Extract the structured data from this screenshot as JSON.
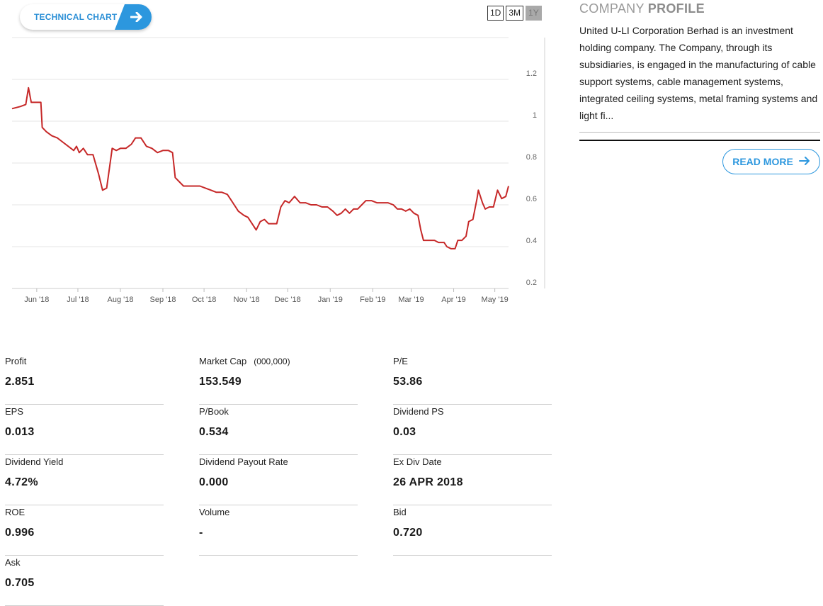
{
  "technical_chart": {
    "label": "TECHNICAL CHART"
  },
  "range_buttons": [
    {
      "label": "1D",
      "active": false
    },
    {
      "label": "3M",
      "active": false
    },
    {
      "label": "1Y",
      "active": true
    }
  ],
  "chart_data": {
    "type": "line",
    "series": [
      {
        "color": "#c62828",
        "points": [
          [
            "2018-05-14",
            1.06
          ],
          [
            "2018-05-20",
            1.07
          ],
          [
            "2018-05-24",
            1.08
          ],
          [
            "2018-05-26",
            1.16
          ],
          [
            "2018-05-28",
            1.09
          ],
          [
            "2018-06-04",
            1.09
          ],
          [
            "2018-06-05",
            0.97
          ],
          [
            "2018-06-08",
            0.95
          ],
          [
            "2018-06-12",
            0.93
          ],
          [
            "2018-06-16",
            0.92
          ],
          [
            "2018-06-20",
            0.9
          ],
          [
            "2018-06-24",
            0.88
          ],
          [
            "2018-06-28",
            0.86
          ],
          [
            "2018-06-30",
            0.88
          ],
          [
            "2018-07-02",
            0.85
          ],
          [
            "2018-07-05",
            0.87
          ],
          [
            "2018-07-08",
            0.84
          ],
          [
            "2018-07-12",
            0.84
          ],
          [
            "2018-07-16",
            0.75
          ],
          [
            "2018-07-19",
            0.67
          ],
          [
            "2018-07-22",
            0.68
          ],
          [
            "2018-07-26",
            0.87
          ],
          [
            "2018-07-29",
            0.86
          ],
          [
            "2018-08-01",
            0.87
          ],
          [
            "2018-08-05",
            0.87
          ],
          [
            "2018-08-09",
            0.89
          ],
          [
            "2018-08-12",
            0.92
          ],
          [
            "2018-08-16",
            0.92
          ],
          [
            "2018-08-20",
            0.88
          ],
          [
            "2018-08-24",
            0.87
          ],
          [
            "2018-08-28",
            0.85
          ],
          [
            "2018-09-01",
            0.86
          ],
          [
            "2018-09-05",
            0.86
          ],
          [
            "2018-09-08",
            0.85
          ],
          [
            "2018-09-10",
            0.73
          ],
          [
            "2018-09-13",
            0.71
          ],
          [
            "2018-09-16",
            0.69
          ],
          [
            "2018-09-22",
            0.69
          ],
          [
            "2018-09-28",
            0.69
          ],
          [
            "2018-10-02",
            0.68
          ],
          [
            "2018-10-06",
            0.67
          ],
          [
            "2018-10-10",
            0.66
          ],
          [
            "2018-10-14",
            0.66
          ],
          [
            "2018-10-18",
            0.65
          ],
          [
            "2018-10-20",
            0.63
          ],
          [
            "2018-10-23",
            0.6
          ],
          [
            "2018-10-26",
            0.57
          ],
          [
            "2018-10-30",
            0.55
          ],
          [
            "2018-11-02",
            0.54
          ],
          [
            "2018-11-05",
            0.51
          ],
          [
            "2018-11-08",
            0.48
          ],
          [
            "2018-11-11",
            0.52
          ],
          [
            "2018-11-14",
            0.53
          ],
          [
            "2018-11-17",
            0.51
          ],
          [
            "2018-11-20",
            0.51
          ],
          [
            "2018-11-23",
            0.51
          ],
          [
            "2018-11-26",
            0.59
          ],
          [
            "2018-11-29",
            0.62
          ],
          [
            "2018-12-02",
            0.61
          ],
          [
            "2018-12-06",
            0.64
          ],
          [
            "2018-12-10",
            0.61
          ],
          [
            "2018-12-14",
            0.61
          ],
          [
            "2018-12-18",
            0.6
          ],
          [
            "2018-12-22",
            0.6
          ],
          [
            "2018-12-26",
            0.59
          ],
          [
            "2018-12-30",
            0.59
          ],
          [
            "2019-01-03",
            0.57
          ],
          [
            "2019-01-06",
            0.55
          ],
          [
            "2019-01-09",
            0.56
          ],
          [
            "2019-01-12",
            0.58
          ],
          [
            "2019-01-15",
            0.56
          ],
          [
            "2019-01-18",
            0.58
          ],
          [
            "2019-01-21",
            0.58
          ],
          [
            "2019-01-24",
            0.6
          ],
          [
            "2019-01-27",
            0.62
          ],
          [
            "2019-01-31",
            0.62
          ],
          [
            "2019-02-04",
            0.61
          ],
          [
            "2019-02-08",
            0.61
          ],
          [
            "2019-02-12",
            0.61
          ],
          [
            "2019-02-16",
            0.6
          ],
          [
            "2019-02-19",
            0.58
          ],
          [
            "2019-02-22",
            0.58
          ],
          [
            "2019-02-25",
            0.57
          ],
          [
            "2019-02-28",
            0.58
          ],
          [
            "2019-03-03",
            0.56
          ],
          [
            "2019-03-06",
            0.55
          ],
          [
            "2019-03-08",
            0.48
          ],
          [
            "2019-03-10",
            0.43
          ],
          [
            "2019-03-14",
            0.43
          ],
          [
            "2019-03-18",
            0.43
          ],
          [
            "2019-03-21",
            0.42
          ],
          [
            "2019-03-25",
            0.42
          ],
          [
            "2019-03-27",
            0.4
          ],
          [
            "2019-03-30",
            0.39
          ],
          [
            "2019-04-02",
            0.39
          ],
          [
            "2019-04-04",
            0.43
          ],
          [
            "2019-04-07",
            0.43
          ],
          [
            "2019-04-10",
            0.45
          ],
          [
            "2019-04-12",
            0.52
          ],
          [
            "2019-04-15",
            0.53
          ],
          [
            "2019-04-18",
            0.63
          ],
          [
            "2019-04-19",
            0.67
          ],
          [
            "2019-04-22",
            0.61
          ],
          [
            "2019-04-24",
            0.58
          ],
          [
            "2019-04-27",
            0.59
          ],
          [
            "2019-04-30",
            0.59
          ],
          [
            "2019-05-03",
            0.67
          ],
          [
            "2019-05-06",
            0.63
          ],
          [
            "2019-05-09",
            0.64
          ],
          [
            "2019-05-11",
            0.69
          ]
        ]
      }
    ],
    "x_ticks": [
      {
        "date": "2018-06-01",
        "label": "Jun '18"
      },
      {
        "date": "2018-07-01",
        "label": "Jul '18"
      },
      {
        "date": "2018-08-01",
        "label": "Aug '18"
      },
      {
        "date": "2018-09-01",
        "label": "Sep '18"
      },
      {
        "date": "2018-10-01",
        "label": "Oct '18"
      },
      {
        "date": "2018-11-01",
        "label": "Nov '18"
      },
      {
        "date": "2018-12-01",
        "label": "Dec '18"
      },
      {
        "date": "2019-01-01",
        "label": "Jan '19"
      },
      {
        "date": "2019-02-01",
        "label": "Feb '19"
      },
      {
        "date": "2019-03-01",
        "label": "Mar '19"
      },
      {
        "date": "2019-04-01",
        "label": "Apr '19"
      },
      {
        "date": "2019-05-01",
        "label": "May '19"
      }
    ],
    "y_ticks": [
      0.2,
      0.4,
      0.6,
      0.8,
      1,
      1.2
    ],
    "y_tick_labels": [
      "0.2",
      "0.4",
      "0.6",
      "0.8",
      "1",
      "1.2"
    ],
    "xlim": [
      "2018-05-14",
      "2019-05-11"
    ],
    "ylim": [
      0.2,
      1.4
    ],
    "grid": true,
    "y_axis_side": "right",
    "title": "",
    "xlabel": "",
    "ylabel": ""
  },
  "profile": {
    "title_light": "COMPANY",
    "title_bold": "PROFILE",
    "description": "United U-LI Corporation Berhad is an investment holding company. The Company, through its subsidiaries, is engaged in the manufacturing of cable support systems, cable management systems, integrated ceiling systems, metal framing systems and light fi...",
    "read_more": "READ MORE"
  },
  "stats": [
    {
      "label": "Profit",
      "value": "2.851"
    },
    {
      "label": "Market Cap",
      "sublabel": "(000,000)",
      "value": "153.549"
    },
    {
      "label": "P/E",
      "value": "53.86"
    },
    {
      "label": "EPS",
      "value": "0.013"
    },
    {
      "label": "P/Book",
      "value": "0.534"
    },
    {
      "label": "Dividend PS",
      "value": "0.03"
    },
    {
      "label": "Dividend Yield",
      "value": "4.72%"
    },
    {
      "label": "Dividend Payout Rate",
      "value": "0.000"
    },
    {
      "label": "Ex Div Date",
      "value": "26 APR 2018"
    },
    {
      "label": "ROE",
      "value": "0.996"
    },
    {
      "label": "Volume",
      "value": "-"
    },
    {
      "label": "Bid",
      "value": "0.720"
    },
    {
      "label": "Ask",
      "value": "0.705"
    }
  ],
  "colors": {
    "accent": "#2c97de",
    "line": "#c62828",
    "grid": "#e6e6e6"
  }
}
